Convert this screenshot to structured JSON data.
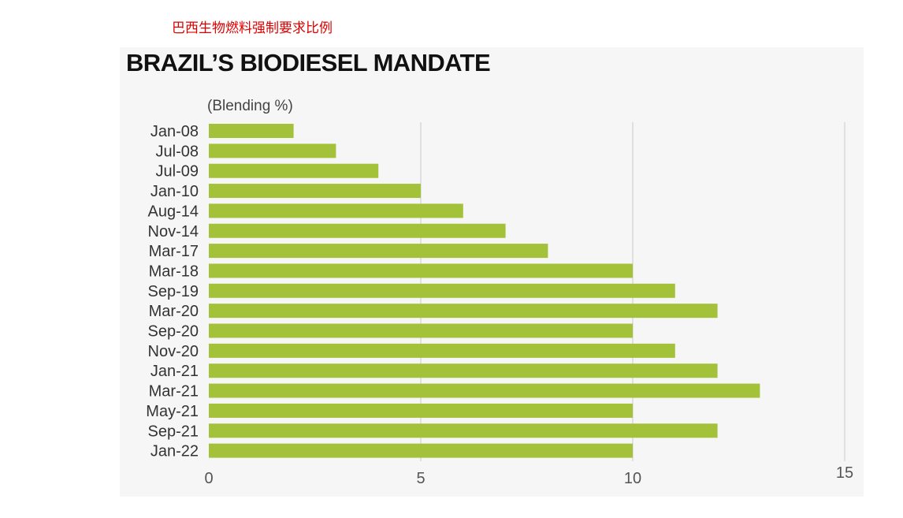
{
  "cn_title": "巴西生物燃料强制要求比例",
  "chart_data": {
    "type": "bar",
    "orientation": "horizontal",
    "title": "BRAZIL’S BIODIESEL MANDATE",
    "unit_label": "(Blending %)",
    "categories": [
      "Jan-08",
      "Jul-08",
      "Jul-09",
      "Jan-10",
      "Aug-14",
      "Nov-14",
      "Mar-17",
      "Mar-18",
      "Sep-19",
      "Mar-20",
      "Sep-20",
      "Nov-20",
      "Jan-21",
      "Mar-21",
      "May-21",
      "Sep-21",
      "Jan-22"
    ],
    "values": [
      2,
      3,
      4,
      5,
      6,
      7,
      8,
      10,
      11,
      12,
      10,
      11,
      12,
      13,
      10,
      12,
      10
    ],
    "xlim": [
      0,
      15
    ],
    "xticks": [
      0,
      5,
      10,
      15
    ],
    "grid": true,
    "bar_color": "#a4c13a",
    "grid_color": "#d9d9d9"
  }
}
